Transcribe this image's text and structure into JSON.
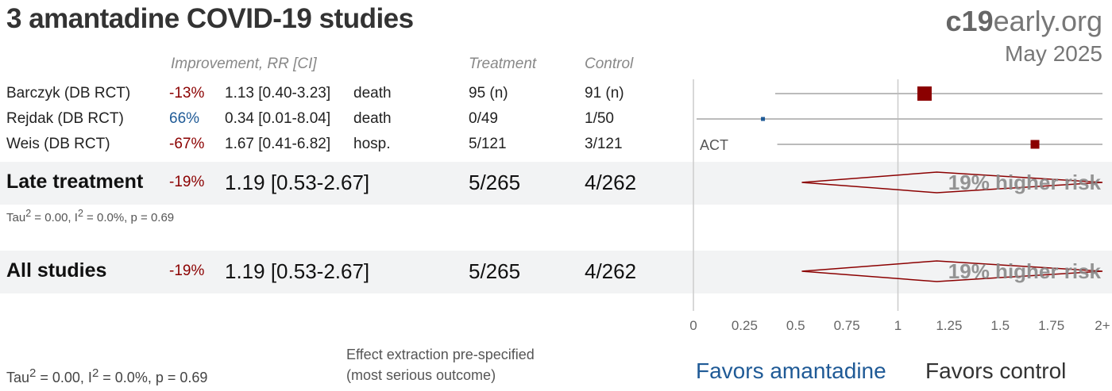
{
  "title": "3 amantadine COVID-19 studies",
  "brand": {
    "prefix": "c19",
    "suffix": "early.org"
  },
  "date": "May 2025",
  "headers": {
    "improvement": "Improvement, RR [CI]",
    "treatment": "Treatment",
    "control": "Control"
  },
  "studies": [
    {
      "name": "Barczyk (DB RCT)",
      "improvement": "-13%",
      "rr_text": "1.13 [0.40-3.23]",
      "outcome": "death",
      "treatment": "95 (n)",
      "control": "91 (n)",
      "annotation": ""
    },
    {
      "name": "Rejdak (DB RCT)",
      "improvement": "66%",
      "rr_text": "0.34 [0.01-8.04]",
      "outcome": "death",
      "treatment": "0/49",
      "control": "1/50",
      "annotation": ""
    },
    {
      "name": "Weis (DB RCT)",
      "improvement": "-67%",
      "rr_text": "1.67 [0.41-6.82]",
      "outcome": "hosp.",
      "treatment": "5/121",
      "control": "3/121",
      "annotation": "ACT"
    }
  ],
  "summaries": [
    {
      "name": "Late treatment",
      "improvement": "-19%",
      "rr_text": "1.19 [0.53-2.67]",
      "treatment": "5/265",
      "control": "4/262",
      "label": "19% higher risk",
      "heterogeneity": {
        "tau_prefix": "Tau",
        "sup": "2",
        "mid": " = 0.00, I",
        "sup2": "2",
        "suffix": " = 0.0%, p = 0.69"
      }
    },
    {
      "name": "All studies",
      "improvement": "-19%",
      "rr_text": "1.19 [0.53-2.67]",
      "treatment": "5/265",
      "control": "4/262",
      "label": "19% higher risk",
      "heterogeneity": null
    }
  ],
  "footer": {
    "heterogeneity": {
      "tau_prefix": "Tau",
      "sup": "2",
      "mid": " = 0.00, I",
      "sup2": "2",
      "suffix": " = 0.0%, p = 0.69"
    },
    "note_line1": "Effect extraction pre-specified",
    "note_line2": "(most serious outcome)",
    "favors_left": "Favors amantadine",
    "favors_right": "Favors control"
  },
  "colors": {
    "harm": "#8b0000",
    "benefit": "#1f5a96",
    "axis": "#cccccc",
    "band": "#f2f3f4"
  },
  "chart_data": {
    "type": "forest",
    "xlim": [
      0,
      2
    ],
    "ticks": [
      0,
      0.25,
      0.5,
      0.75,
      1,
      1.25,
      1.5,
      1.75,
      2
    ],
    "tick_labels": [
      "0",
      "0.25",
      "0.5",
      "0.75",
      "1",
      "1.25",
      "1.5",
      "1.75",
      "2+"
    ],
    "reference": 1,
    "studies": [
      {
        "name": "Barczyk (DB RCT)",
        "rr": 1.13,
        "lower": 0.4,
        "upper": 3.23,
        "weight": "large",
        "color": "harm"
      },
      {
        "name": "Rejdak (DB RCT)",
        "rr": 0.34,
        "lower": 0.01,
        "upper": 8.04,
        "weight": "small",
        "color": "benefit"
      },
      {
        "name": "Weis (DB RCT)",
        "rr": 1.67,
        "lower": 0.41,
        "upper": 6.82,
        "weight": "medium",
        "color": "harm"
      }
    ],
    "summaries": [
      {
        "name": "Late treatment",
        "rr": 1.19,
        "lower": 0.53,
        "upper": 2.67
      },
      {
        "name": "All studies",
        "rr": 1.19,
        "lower": 0.53,
        "upper": 2.67
      }
    ]
  }
}
